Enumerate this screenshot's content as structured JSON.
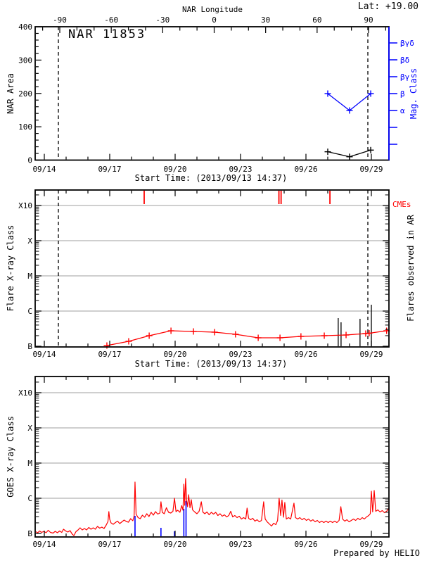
{
  "header": {
    "lat": "Lat: +19.00"
  },
  "footer": {
    "credit": "Prepared by HELIO"
  },
  "axes": {
    "start_label": "Start Time: (2013/09/13 14:37)",
    "time_tick_labels": [
      "09/14",
      "09/17",
      "09/20",
      "09/23",
      "09/26",
      "09/29"
    ]
  },
  "chart_data": [
    {
      "panel": "nar-area",
      "type": "line",
      "title": "NAR 11853",
      "ylabel": "NAR Area",
      "ylim": [
        0,
        400
      ],
      "ytick_labels": [
        "0",
        "100",
        "200",
        "300",
        "400"
      ],
      "ytick_minor_step": 20,
      "top_axis": {
        "label": "NAR Longitude",
        "tick_labels": [
          "-90",
          "-60",
          "-30",
          "0",
          "30",
          "60",
          "90"
        ],
        "tick_values": [
          -90,
          -60,
          -30,
          0,
          30,
          60,
          90
        ]
      },
      "right_axis": {
        "label": "Mag. Class",
        "color": "#0000ff",
        "tick_labels": [
          "βγδ",
          "βδ",
          "βγ",
          "β",
          "α",
          "",
          ""
        ]
      },
      "limb_crossing_days": [
        0.645,
        14.839
      ],
      "series": [
        {
          "name": "nar-area",
          "color": "#000000",
          "marker": "plus",
          "points": [
            [
              13.0,
              25
            ],
            [
              14.0,
              10
            ],
            [
              14.97,
              30
            ]
          ]
        },
        {
          "name": "mag-class",
          "color": "#0000ff",
          "marker": "plus",
          "axis": "right",
          "points": [
            [
              13.0,
              "β"
            ],
            [
              14.0,
              "α"
            ],
            [
              14.97,
              "β"
            ]
          ]
        }
      ]
    },
    {
      "panel": "flare-xray",
      "type": "line",
      "ylabel": "Flare X-ray Class",
      "right_label": "Flares observed in AR",
      "ytick_labels": [
        "B",
        "C",
        "M",
        "X",
        "X10"
      ],
      "limb_crossing_days": [
        0.645,
        14.839
      ],
      "cmes": {
        "label": "CMEs",
        "color": "#ff0000",
        "days": [
          4.58,
          10.76,
          10.86,
          13.1
        ]
      },
      "flares": [
        [
          13.48,
          0.8
        ],
        [
          13.61,
          0.68
        ],
        [
          14.48,
          0.78
        ],
        [
          15.0,
          1.18
        ]
      ],
      "background": {
        "name": "flare-background",
        "color": "#ff0000",
        "points": [
          [
            2.87,
            0.02
          ],
          [
            3.87,
            0.14
          ],
          [
            4.81,
            0.3
          ],
          [
            5.81,
            0.44
          ],
          [
            6.84,
            0.42
          ],
          [
            7.81,
            0.4
          ],
          [
            8.77,
            0.34
          ],
          [
            9.81,
            0.24
          ],
          [
            10.81,
            0.24
          ],
          [
            11.77,
            0.28
          ],
          [
            12.84,
            0.3
          ],
          [
            13.84,
            0.32
          ],
          [
            14.74,
            0.36
          ],
          [
            14.9,
            0.37
          ],
          [
            15.7,
            0.44
          ],
          [
            15.81,
            0.45
          ]
        ]
      }
    },
    {
      "panel": "goes-xray",
      "type": "line",
      "ylabel": "GOES X-ray Class",
      "ytick_labels": [
        "B",
        "C",
        "M",
        "X",
        "X10"
      ],
      "flare_marks": {
        "color": "#0000ff",
        "lines": [
          [
            4.16,
            0.5
          ],
          [
            5.35,
            0.16
          ],
          [
            5.97,
            0.06
          ],
          [
            6.4,
            0.7
          ],
          [
            6.5,
            0.92
          ]
        ]
      },
      "series": [
        {
          "name": "goes-flux",
          "color": "#ff0000",
          "points": [
            [
              -0.39,
              0.05
            ],
            [
              -0.3,
              0.02
            ],
            [
              -0.22,
              0.07
            ],
            [
              -0.12,
              0.03
            ],
            [
              -0.02,
              0.06
            ],
            [
              0.08,
              0.02
            ],
            [
              0.18,
              0.09
            ],
            [
              0.28,
              0.03
            ],
            [
              0.4,
              0.01
            ],
            [
              0.5,
              0.06
            ],
            [
              0.6,
              0.02
            ],
            [
              0.7,
              0.07
            ],
            [
              0.8,
              0.03
            ],
            [
              0.88,
              0.12
            ],
            [
              0.98,
              0.07
            ],
            [
              1.08,
              0.04
            ],
            [
              1.18,
              0.08
            ],
            [
              1.28,
              -0.02
            ],
            [
              1.36,
              -0.06
            ],
            [
              1.45,
              0.05
            ],
            [
              1.55,
              0.1
            ],
            [
              1.64,
              0.16
            ],
            [
              1.74,
              0.1
            ],
            [
              1.84,
              0.14
            ],
            [
              1.94,
              0.1
            ],
            [
              2.04,
              0.17
            ],
            [
              2.14,
              0.12
            ],
            [
              2.24,
              0.16
            ],
            [
              2.34,
              0.12
            ],
            [
              2.44,
              0.2
            ],
            [
              2.54,
              0.15
            ],
            [
              2.64,
              0.18
            ],
            [
              2.74,
              0.14
            ],
            [
              2.84,
              0.24
            ],
            [
              2.92,
              0.34
            ],
            [
              2.96,
              0.62
            ],
            [
              3.0,
              0.4
            ],
            [
              3.06,
              0.3
            ],
            [
              3.16,
              0.26
            ],
            [
              3.26,
              0.31
            ],
            [
              3.36,
              0.35
            ],
            [
              3.46,
              0.28
            ],
            [
              3.56,
              0.33
            ],
            [
              3.66,
              0.38
            ],
            [
              3.76,
              0.34
            ],
            [
              3.86,
              0.32
            ],
            [
              3.96,
              0.42
            ],
            [
              4.06,
              0.36
            ],
            [
              4.12,
              0.5
            ],
            [
              4.16,
              1.46
            ],
            [
              4.21,
              0.55
            ],
            [
              4.3,
              0.45
            ],
            [
              4.4,
              0.42
            ],
            [
              4.5,
              0.52
            ],
            [
              4.6,
              0.46
            ],
            [
              4.7,
              0.56
            ],
            [
              4.8,
              0.48
            ],
            [
              4.9,
              0.6
            ],
            [
              5.0,
              0.52
            ],
            [
              5.1,
              0.62
            ],
            [
              5.2,
              0.55
            ],
            [
              5.3,
              0.58
            ],
            [
              5.35,
              0.9
            ],
            [
              5.41,
              0.6
            ],
            [
              5.5,
              0.56
            ],
            [
              5.6,
              0.73
            ],
            [
              5.7,
              0.6
            ],
            [
              5.8,
              0.58
            ],
            [
              5.9,
              0.63
            ],
            [
              5.97,
              1.0
            ],
            [
              6.04,
              0.62
            ],
            [
              6.12,
              0.66
            ],
            [
              6.22,
              0.6
            ],
            [
              6.3,
              0.79
            ],
            [
              6.36,
              0.66
            ],
            [
              6.4,
              1.4
            ],
            [
              6.44,
              0.8
            ],
            [
              6.48,
              1.56
            ],
            [
              6.53,
              0.92
            ],
            [
              6.57,
              0.76
            ],
            [
              6.62,
              1.1
            ],
            [
              6.68,
              0.73
            ],
            [
              6.74,
              0.96
            ],
            [
              6.8,
              0.67
            ],
            [
              6.9,
              0.61
            ],
            [
              7.0,
              0.56
            ],
            [
              7.1,
              0.63
            ],
            [
              7.2,
              0.9
            ],
            [
              7.27,
              0.61
            ],
            [
              7.36,
              0.56
            ],
            [
              7.46,
              0.61
            ],
            [
              7.56,
              0.53
            ],
            [
              7.66,
              0.6
            ],
            [
              7.76,
              0.55
            ],
            [
              7.86,
              0.6
            ],
            [
              7.96,
              0.51
            ],
            [
              8.06,
              0.56
            ],
            [
              8.16,
              0.49
            ],
            [
              8.26,
              0.53
            ],
            [
              8.36,
              0.47
            ],
            [
              8.46,
              0.51
            ],
            [
              8.55,
              0.63
            ],
            [
              8.64,
              0.47
            ],
            [
              8.74,
              0.51
            ],
            [
              8.84,
              0.45
            ],
            [
              8.94,
              0.49
            ],
            [
              9.04,
              0.41
            ],
            [
              9.14,
              0.45
            ],
            [
              9.24,
              0.41
            ],
            [
              9.3,
              0.72
            ],
            [
              9.37,
              0.43
            ],
            [
              9.46,
              0.39
            ],
            [
              9.56,
              0.43
            ],
            [
              9.66,
              0.35
            ],
            [
              9.76,
              0.39
            ],
            [
              9.86,
              0.33
            ],
            [
              9.96,
              0.37
            ],
            [
              10.06,
              0.9
            ],
            [
              10.13,
              0.41
            ],
            [
              10.22,
              0.33
            ],
            [
              10.32,
              0.27
            ],
            [
              10.42,
              0.21
            ],
            [
              10.52,
              0.29
            ],
            [
              10.62,
              0.25
            ],
            [
              10.7,
              0.37
            ],
            [
              10.77,
              1.0
            ],
            [
              10.84,
              0.51
            ],
            [
              10.9,
              0.95
            ],
            [
              10.97,
              0.46
            ],
            [
              11.03,
              0.88
            ],
            [
              11.1,
              0.41
            ],
            [
              11.2,
              0.45
            ],
            [
              11.3,
              0.41
            ],
            [
              11.45,
              0.86
            ],
            [
              11.52,
              0.45
            ],
            [
              11.62,
              0.41
            ],
            [
              11.72,
              0.45
            ],
            [
              11.82,
              0.39
            ],
            [
              11.92,
              0.43
            ],
            [
              12.02,
              0.37
            ],
            [
              12.12,
              0.41
            ],
            [
              12.22,
              0.35
            ],
            [
              12.32,
              0.39
            ],
            [
              12.42,
              0.33
            ],
            [
              12.52,
              0.37
            ],
            [
              12.62,
              0.31
            ],
            [
              12.72,
              0.35
            ],
            [
              12.82,
              0.31
            ],
            [
              12.92,
              0.35
            ],
            [
              13.02,
              0.31
            ],
            [
              13.12,
              0.35
            ],
            [
              13.22,
              0.31
            ],
            [
              13.32,
              0.35
            ],
            [
              13.42,
              0.31
            ],
            [
              13.52,
              0.37
            ],
            [
              13.6,
              0.76
            ],
            [
              13.68,
              0.41
            ],
            [
              13.78,
              0.35
            ],
            [
              13.88,
              0.39
            ],
            [
              13.98,
              0.33
            ],
            [
              14.08,
              0.37
            ],
            [
              14.18,
              0.41
            ],
            [
              14.28,
              0.37
            ],
            [
              14.38,
              0.43
            ],
            [
              14.48,
              0.39
            ],
            [
              14.58,
              0.45
            ],
            [
              14.68,
              0.41
            ],
            [
              14.78,
              0.47
            ],
            [
              14.88,
              0.51
            ],
            [
              14.95,
              0.56
            ],
            [
              15.0,
              1.2
            ],
            [
              15.06,
              0.61
            ],
            [
              15.13,
              1.22
            ],
            [
              15.2,
              0.63
            ],
            [
              15.3,
              0.67
            ],
            [
              15.4,
              0.61
            ],
            [
              15.5,
              0.65
            ],
            [
              15.6,
              0.59
            ],
            [
              15.7,
              0.63
            ],
            [
              15.81,
              0.72
            ]
          ]
        }
      ]
    }
  ]
}
